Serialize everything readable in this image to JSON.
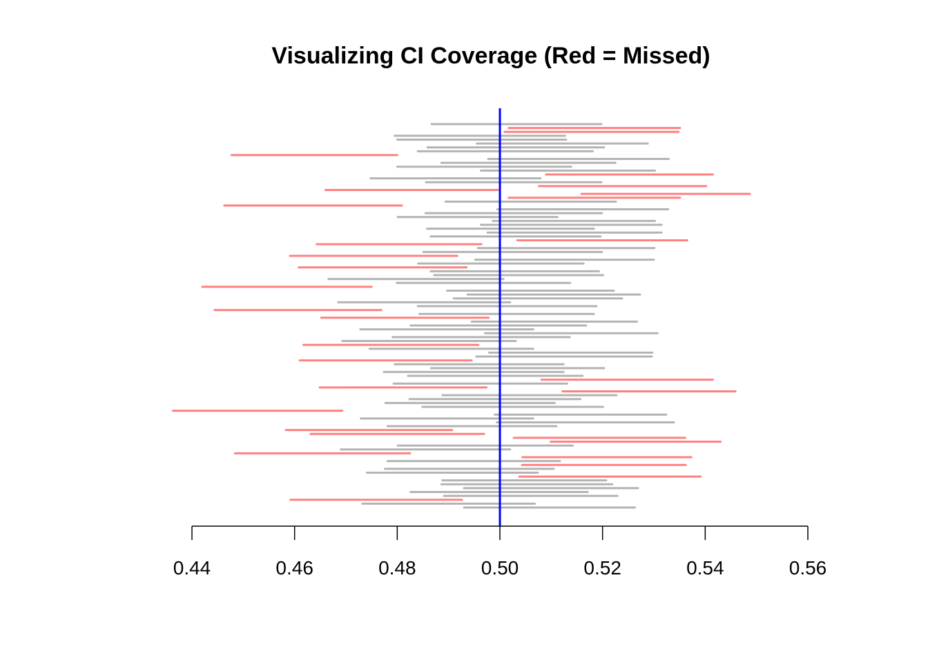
{
  "chart_data": {
    "type": "interval",
    "title": "Visualizing CI Coverage (Red = Missed)",
    "xlabel": "",
    "ylabel": "",
    "xlim": [
      0.44,
      0.56
    ],
    "x_ticks": [
      "0.44",
      "0.46",
      "0.48",
      "0.50",
      "0.52",
      "0.54",
      "0.56"
    ],
    "true_value": 0.5,
    "colors": {
      "covered": "#b3b3b3",
      "missed": "#ff8080",
      "true_line": "#0000ff"
    },
    "series_fields": [
      "lower",
      "upper",
      "missed"
    ],
    "intervals": [
      [
        0.4867,
        0.5198,
        0
      ],
      [
        0.5017,
        0.5351,
        1
      ],
      [
        0.5009,
        0.5348,
        1
      ],
      [
        0.4795,
        0.5127,
        0
      ],
      [
        0.48,
        0.5129,
        0
      ],
      [
        0.4955,
        0.5288,
        0
      ],
      [
        0.4859,
        0.5203,
        0
      ],
      [
        0.484,
        0.5181,
        0
      ],
      [
        0.4477,
        0.48,
        1
      ],
      [
        0.4977,
        0.5329,
        0
      ],
      [
        0.4886,
        0.5225,
        0
      ],
      [
        0.48,
        0.5139,
        0
      ],
      [
        0.4963,
        0.5302,
        0
      ],
      [
        0.509,
        0.5415,
        1
      ],
      [
        0.4748,
        0.5079,
        0
      ],
      [
        0.4856,
        0.5198,
        0
      ],
      [
        0.5076,
        0.5402,
        1
      ],
      [
        0.466,
        0.4996,
        1
      ],
      [
        0.5159,
        0.5487,
        1
      ],
      [
        0.5017,
        0.5351,
        1
      ],
      [
        0.4894,
        0.5226,
        0
      ],
      [
        0.4463,
        0.4809,
        1
      ],
      [
        0.4995,
        0.5328,
        0
      ],
      [
        0.4855,
        0.5199,
        0
      ],
      [
        0.4801,
        0.5112,
        0
      ],
      [
        0.4986,
        0.5302,
        0
      ],
      [
        0.4963,
        0.5315,
        0
      ],
      [
        0.4858,
        0.5183,
        0
      ],
      [
        0.4976,
        0.5315,
        0
      ],
      [
        0.4865,
        0.5196,
        0
      ],
      [
        0.5034,
        0.5365,
        1
      ],
      [
        0.4643,
        0.4964,
        1
      ],
      [
        0.4957,
        0.5301,
        0
      ],
      [
        0.4851,
        0.5199,
        0
      ],
      [
        0.4591,
        0.4917,
        1
      ],
      [
        0.4952,
        0.53,
        0
      ],
      [
        0.4841,
        0.5163,
        0
      ],
      [
        0.4608,
        0.4935,
        1
      ],
      [
        0.4865,
        0.5193,
        0
      ],
      [
        0.4872,
        0.5201,
        0
      ],
      [
        0.4666,
        0.5007,
        0
      ],
      [
        0.4799,
        0.5137,
        0
      ],
      [
        0.442,
        0.475,
        1
      ],
      [
        0.4897,
        0.5222,
        0
      ],
      [
        0.4937,
        0.5273,
        0
      ],
      [
        0.491,
        0.5238,
        0
      ],
      [
        0.4685,
        0.502,
        0
      ],
      [
        0.484,
        0.5188,
        0
      ],
      [
        0.4444,
        0.4769,
        1
      ],
      [
        0.4843,
        0.5183,
        0
      ],
      [
        0.4652,
        0.4978,
        1
      ],
      [
        0.4945,
        0.5267,
        0
      ],
      [
        0.4826,
        0.5168,
        0
      ],
      [
        0.4728,
        0.5065,
        0
      ],
      [
        0.4971,
        0.5307,
        0
      ],
      [
        0.4791,
        0.5136,
        0
      ],
      [
        0.4693,
        0.5031,
        0
      ],
      [
        0.4617,
        0.4958,
        1
      ],
      [
        0.4746,
        0.5065,
        0
      ],
      [
        0.4979,
        0.5297,
        0
      ],
      [
        0.4954,
        0.5296,
        0
      ],
      [
        0.461,
        0.4945,
        1
      ],
      [
        0.4795,
        0.5124,
        0
      ],
      [
        0.4866,
        0.5203,
        0
      ],
      [
        0.4774,
        0.5124,
        0
      ],
      [
        0.4821,
        0.5161,
        0
      ],
      [
        0.5081,
        0.5415,
        1
      ],
      [
        0.4793,
        0.5131,
        0
      ],
      [
        0.4649,
        0.4974,
        1
      ],
      [
        0.5122,
        0.5459,
        1
      ],
      [
        0.4888,
        0.5227,
        0
      ],
      [
        0.4824,
        0.5157,
        0
      ],
      [
        0.4777,
        0.5107,
        0
      ],
      [
        0.4849,
        0.5201,
        0
      ],
      [
        0.4363,
        0.4693,
        1
      ],
      [
        0.499,
        0.5324,
        0
      ],
      [
        0.4729,
        0.5065,
        0
      ],
      [
        0.4994,
        0.5339,
        0
      ],
      [
        0.4781,
        0.511,
        0
      ],
      [
        0.4583,
        0.4907,
        1
      ],
      [
        0.4631,
        0.4969,
        1
      ],
      [
        0.5027,
        0.5361,
        1
      ],
      [
        0.5099,
        0.543,
        1
      ],
      [
        0.4801,
        0.5142,
        0
      ],
      [
        0.469,
        0.502,
        0
      ],
      [
        0.4484,
        0.4825,
        1
      ],
      [
        0.5044,
        0.5373,
        1
      ],
      [
        0.4781,
        0.5117,
        0
      ],
      [
        0.5043,
        0.5362,
        1
      ],
      [
        0.4776,
        0.5105,
        0
      ],
      [
        0.4741,
        0.5074,
        0
      ],
      [
        0.5038,
        0.5391,
        1
      ],
      [
        0.4888,
        0.5207,
        0
      ],
      [
        0.4886,
        0.5219,
        0
      ],
      [
        0.493,
        0.5269,
        0
      ],
      [
        0.4826,
        0.5171,
        0
      ],
      [
        0.4891,
        0.5229,
        0
      ],
      [
        0.4592,
        0.4926,
        1
      ],
      [
        0.4732,
        0.5068,
        0
      ],
      [
        0.493,
        0.5263,
        0
      ]
    ]
  }
}
